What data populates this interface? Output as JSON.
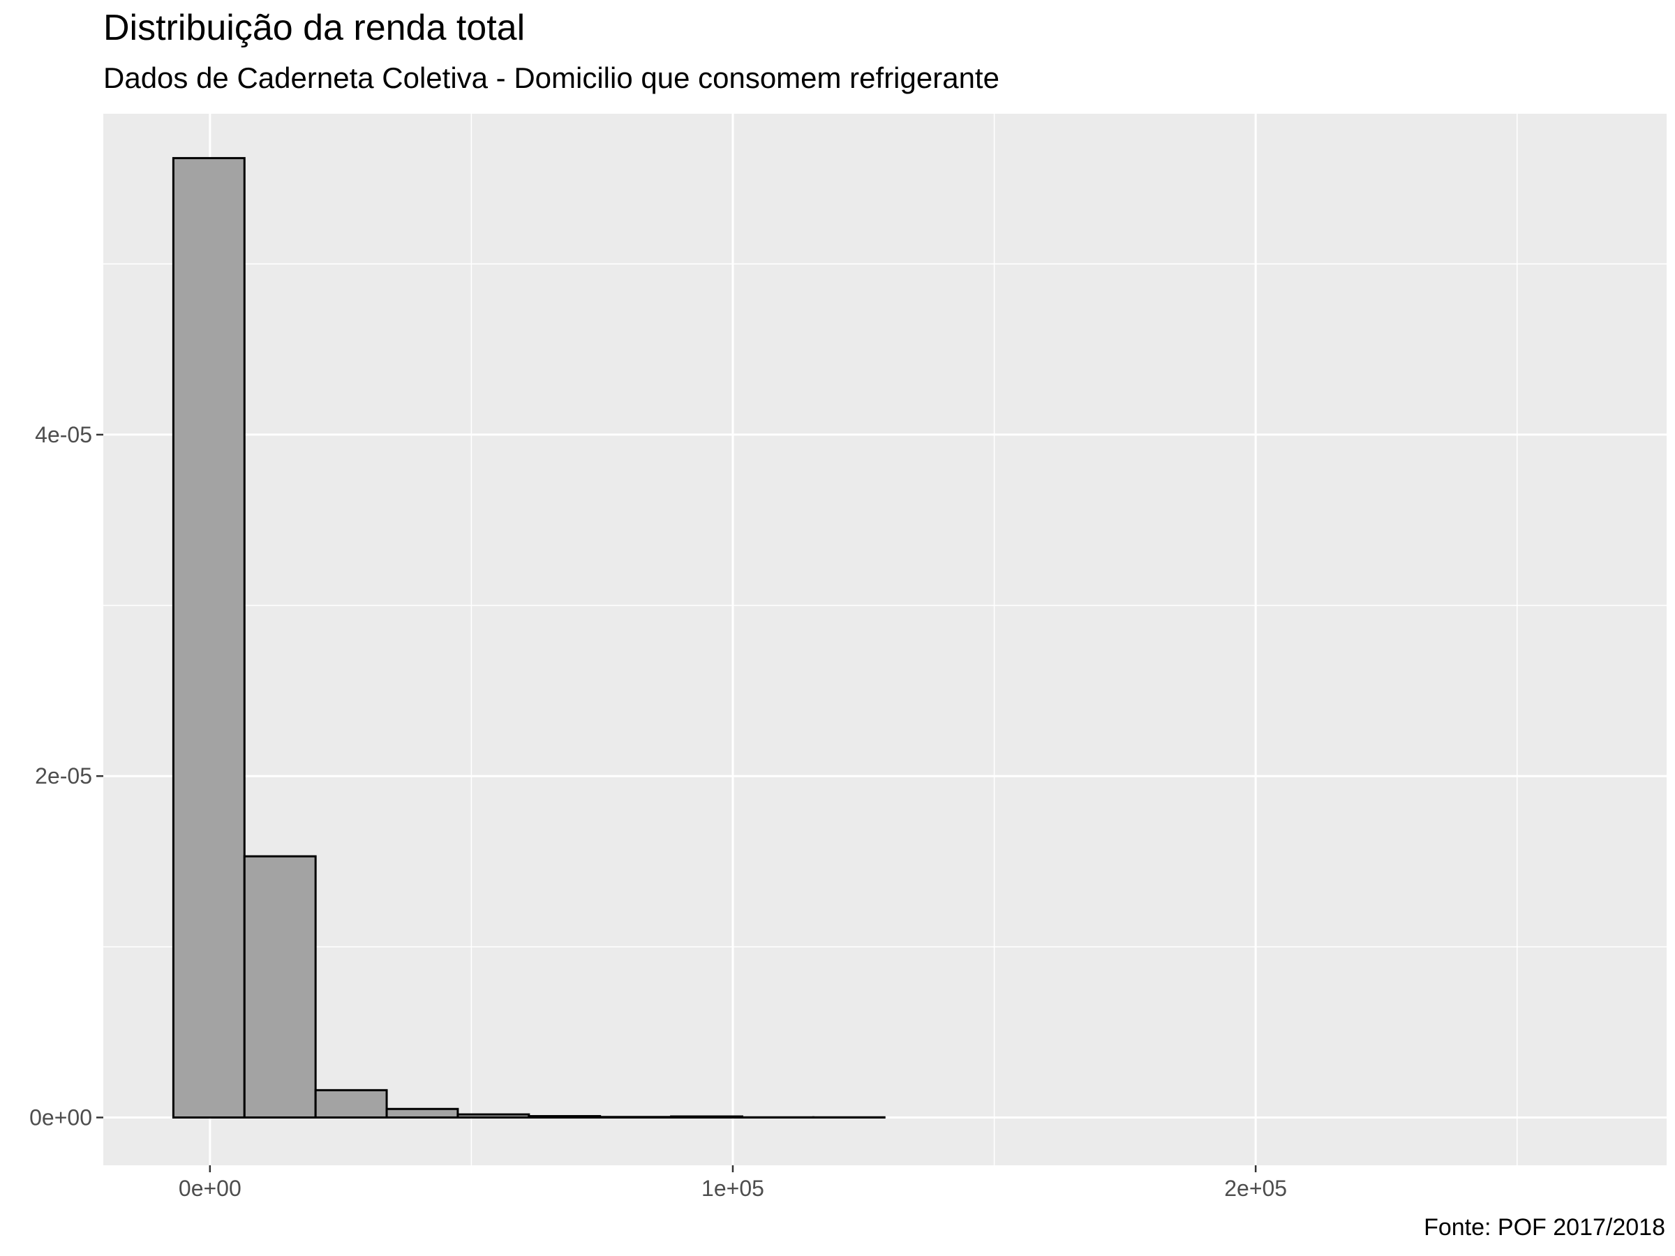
{
  "chart_data": {
    "type": "bar",
    "subtype": "histogram",
    "title": "Distribuição da renda total",
    "subtitle": "Dados de Caderneta Coletiva - Domicilio que consomem refrigerante",
    "caption": "Fonte: POF 2017/2018",
    "xlabel": "",
    "ylabel": "",
    "bin_width": 13600,
    "bins": [
      {
        "x0": -7000,
        "x1": 6600,
        "value": 5.62e-05
      },
      {
        "x0": 6600,
        "x1": 20200,
        "value": 1.53e-05
      },
      {
        "x0": 20200,
        "x1": 33800,
        "value": 1.6e-06
      },
      {
        "x0": 33800,
        "x1": 47400,
        "value": 5e-07
      },
      {
        "x0": 47400,
        "x1": 61000,
        "value": 1.8e-07
      },
      {
        "x0": 61000,
        "x1": 74600,
        "value": 8e-08
      },
      {
        "x0": 74600,
        "x1": 88200,
        "value": 3e-08
      },
      {
        "x0": 88200,
        "x1": 101800,
        "value": 6e-08
      },
      {
        "x0": 101800,
        "x1": 115400,
        "value": 1e-08
      },
      {
        "x0": 115400,
        "x1": 129000,
        "value": 1e-08
      },
      {
        "x0": 129000,
        "x1": 142600,
        "value": 0
      },
      {
        "x0": 142600,
        "x1": 156200,
        "value": 0
      },
      {
        "x0": 156200,
        "x1": 169800,
        "value": 0
      },
      {
        "x0": 169800,
        "x1": 183400,
        "value": 0
      },
      {
        "x0": 183400,
        "x1": 197000,
        "value": 0
      },
      {
        "x0": 197000,
        "x1": 210600,
        "value": 0
      },
      {
        "x0": 210600,
        "x1": 224200,
        "value": 0
      },
      {
        "x0": 224200,
        "x1": 237800,
        "value": 0
      },
      {
        "x0": 237800,
        "x1": 251400,
        "value": 0
      },
      {
        "x0": 251400,
        "x1": 265000,
        "value": 0
      }
    ],
    "xlim": [
      -20400,
      278600
    ],
    "ylim": [
      -2.8e-06,
      5.88e-05
    ],
    "x_ticks": [
      {
        "value": 0,
        "label": "0e+00"
      },
      {
        "value": 100000,
        "label": "1e+05"
      },
      {
        "value": 200000,
        "label": "2e+05"
      }
    ],
    "y_ticks": [
      {
        "value": 0,
        "label": "0e+00"
      },
      {
        "value": 2e-05,
        "label": "2e-05"
      },
      {
        "value": 4e-05,
        "label": "4e-05"
      }
    ],
    "grid": true,
    "bar_fill": "#a3a3a3",
    "bar_stroke": "#000000",
    "panel_background": "#ebebeb",
    "grid_color": "#ffffff"
  }
}
